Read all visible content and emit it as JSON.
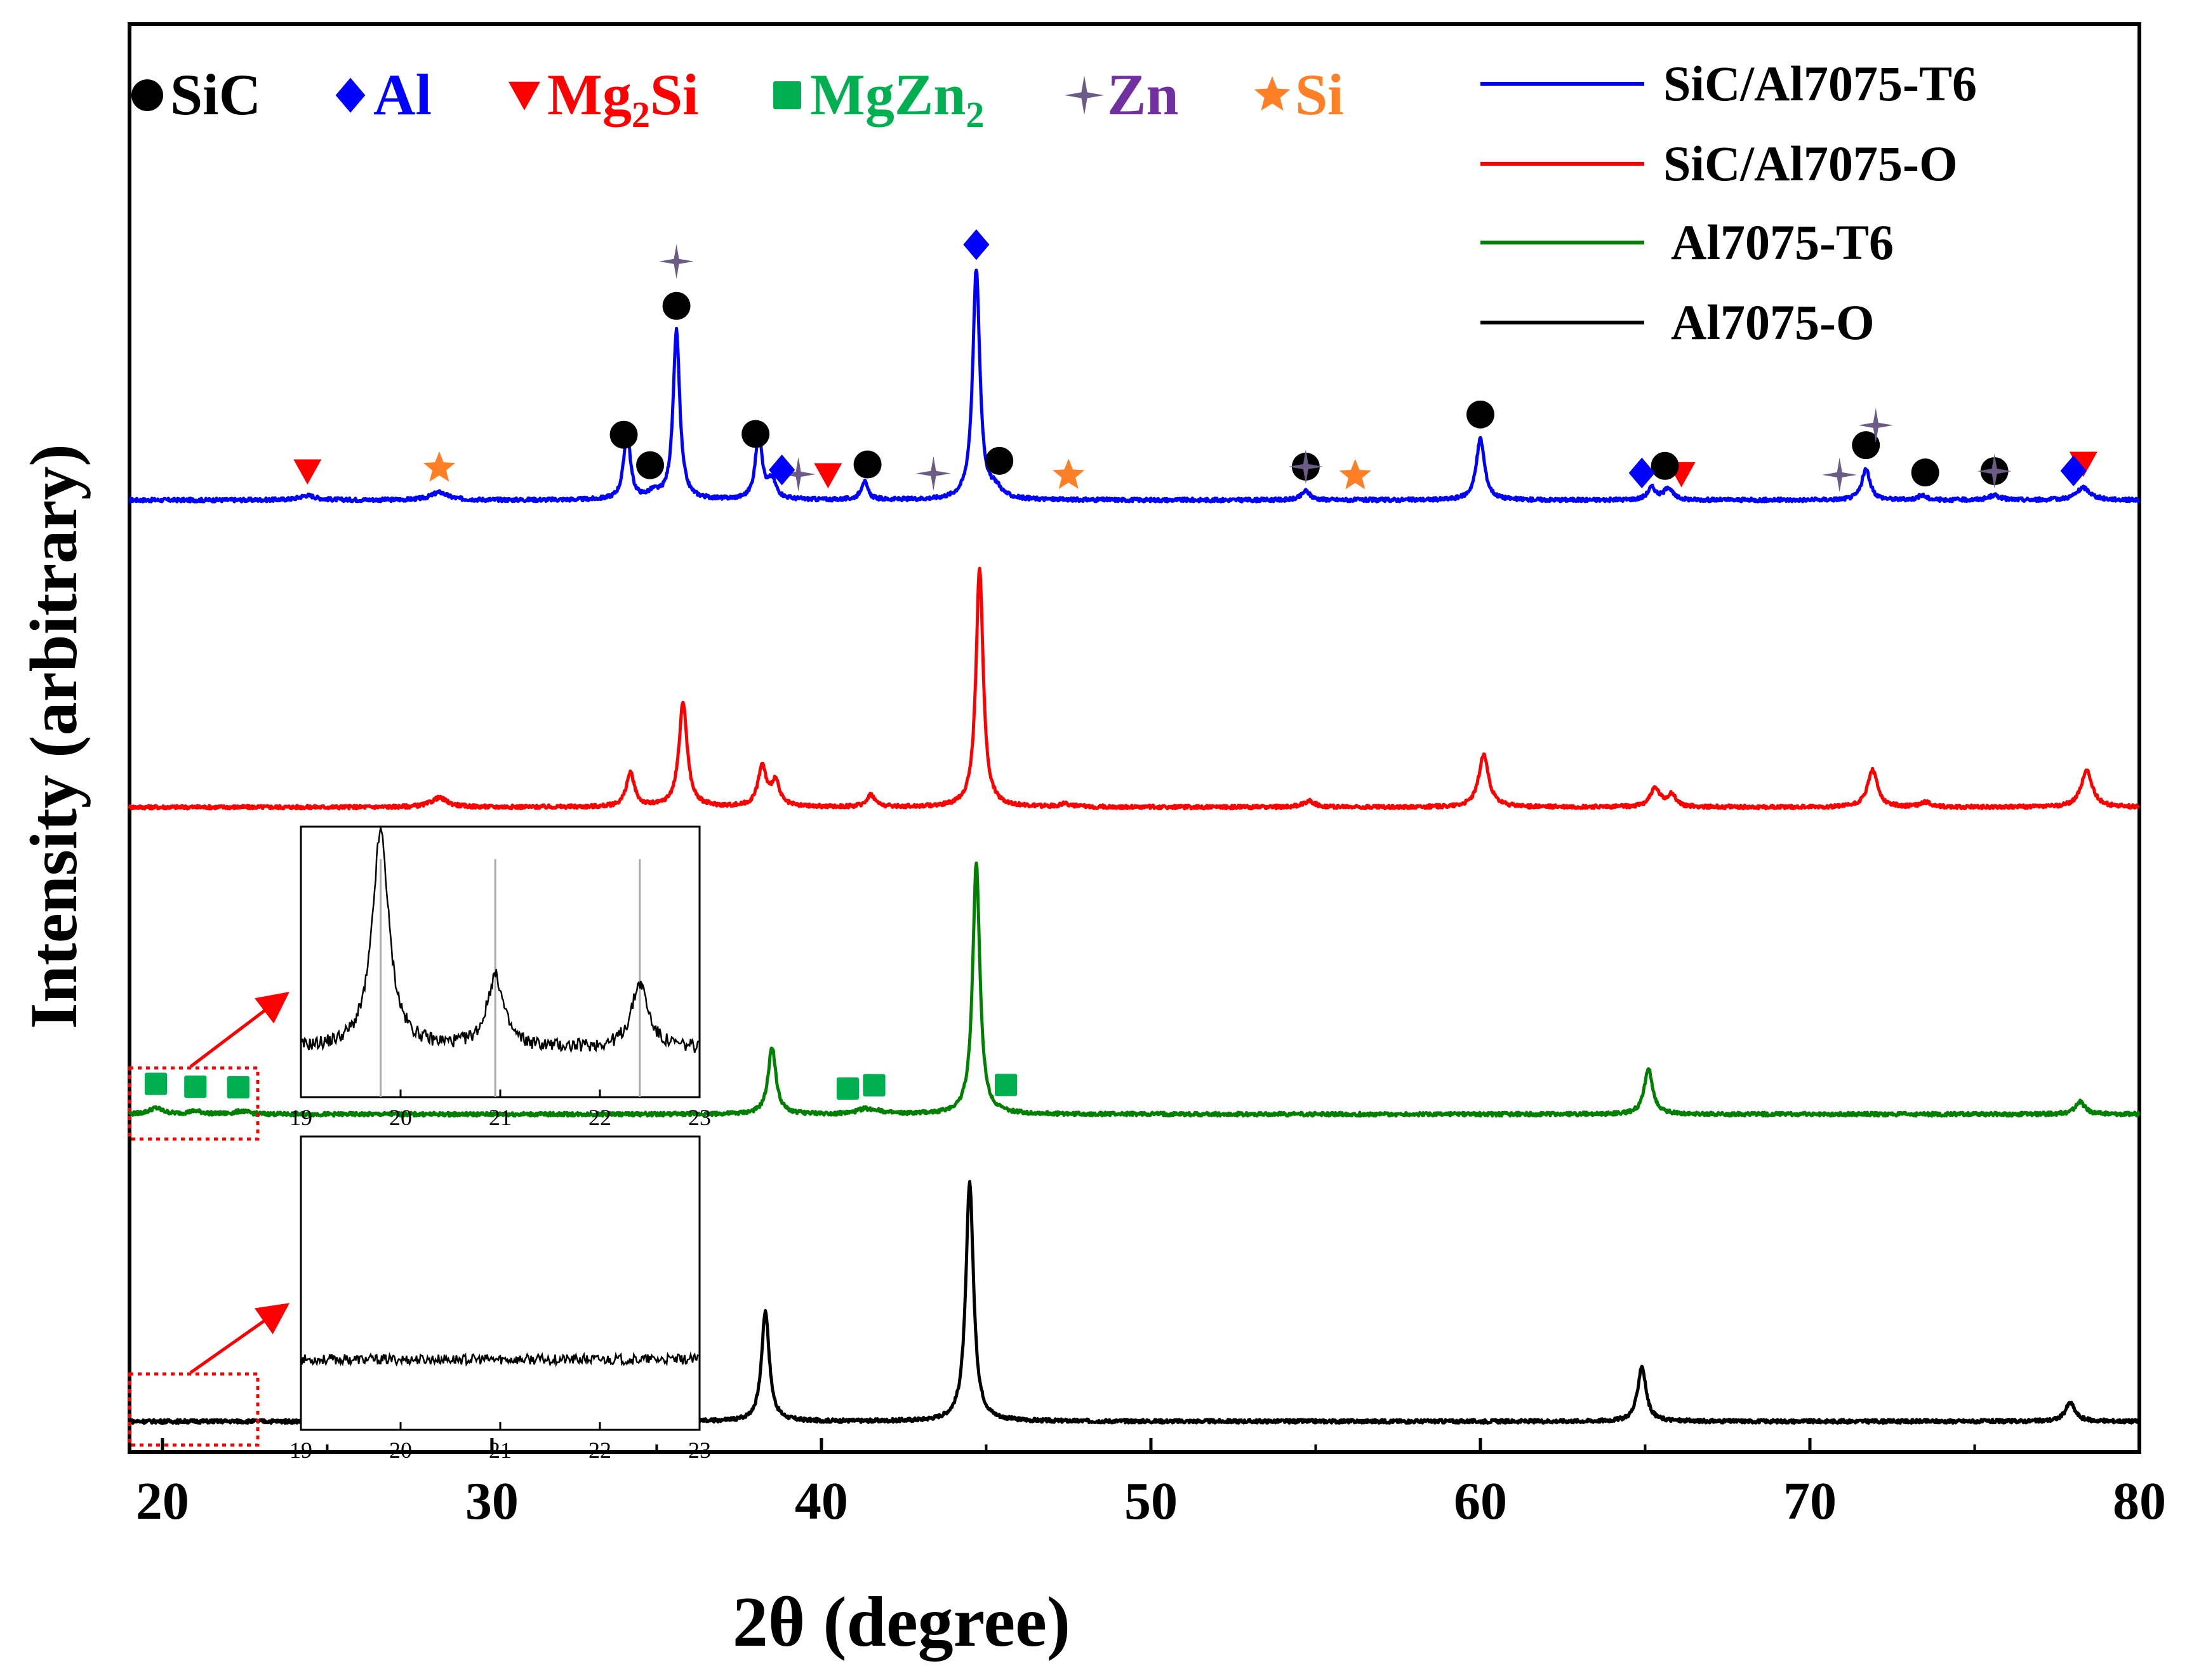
{
  "chart_data": {
    "type": "line",
    "title": "",
    "xlabel": "2θ (degree)",
    "ylabel": "Intensity (arbitrary)",
    "xlim": [
      19,
      80
    ],
    "ylim": [
      -0.5,
      46
    ],
    "x_ticks": [
      20,
      30,
      40,
      50,
      60,
      70,
      80
    ],
    "y_ticks_shown": false,
    "grid": false,
    "legend_position": "top-right",
    "series": [
      {
        "name": "SiC/Al7075-T6",
        "color": "#0000ff",
        "baseline": 30.5,
        "peaks": [
          [
            24.4,
            0.15,
            0.3
          ],
          [
            28.4,
            0.25,
            0.3
          ],
          [
            34.1,
            2.2,
            0.12
          ],
          [
            34.9,
            0.2,
            0.2
          ],
          [
            35.6,
            5.5,
            0.12
          ],
          [
            38.1,
            2.2,
            0.12
          ],
          [
            38.5,
            0.6,
            0.15
          ],
          [
            41.3,
            0.6,
            0.12
          ],
          [
            44.7,
            7.5,
            0.13
          ],
          [
            45.3,
            0.3,
            0.2
          ],
          [
            54.7,
            0.3,
            0.15
          ],
          [
            60.0,
            2.0,
            0.15
          ],
          [
            65.2,
            0.4,
            0.15
          ],
          [
            65.7,
            0.4,
            0.15
          ],
          [
            71.7,
            1.0,
            0.15
          ],
          [
            73.4,
            0.15,
            0.15
          ],
          [
            75.6,
            0.15,
            0.2
          ],
          [
            78.3,
            0.4,
            0.25
          ]
        ]
      },
      {
        "name": "SiC/Al7075-O",
        "color": "#ff0000",
        "baseline": 20.5,
        "peaks": [
          [
            28.4,
            0.3,
            0.3
          ],
          [
            34.2,
            1.1,
            0.15
          ],
          [
            35.8,
            3.4,
            0.15
          ],
          [
            38.2,
            1.3,
            0.15
          ],
          [
            38.6,
            0.8,
            0.15
          ],
          [
            41.5,
            0.4,
            0.15
          ],
          [
            44.8,
            7.8,
            0.13
          ],
          [
            47.4,
            0.1,
            0.2
          ],
          [
            54.8,
            0.2,
            0.2
          ],
          [
            60.1,
            1.7,
            0.18
          ],
          [
            65.3,
            0.6,
            0.18
          ],
          [
            65.8,
            0.4,
            0.15
          ],
          [
            71.9,
            1.2,
            0.18
          ],
          [
            73.5,
            0.15,
            0.2
          ],
          [
            78.4,
            1.2,
            0.2
          ]
        ]
      },
      {
        "name": "Al7075-T6",
        "color": "#008000",
        "baseline": 10.5,
        "peaks": [
          [
            19.8,
            0.2,
            0.25
          ],
          [
            21.0,
            0.1,
            0.25
          ],
          [
            22.4,
            0.1,
            0.25
          ],
          [
            38.5,
            2.2,
            0.14
          ],
          [
            41.3,
            0.15,
            0.25
          ],
          [
            41.7,
            0.1,
            0.2
          ],
          [
            44.7,
            8.2,
            0.13
          ],
          [
            65.1,
            1.5,
            0.15
          ],
          [
            78.2,
            0.4,
            0.18
          ]
        ]
      },
      {
        "name": "Al7075-O",
        "color": "#000000",
        "baseline": 0.5,
        "peaks": [
          [
            38.3,
            3.6,
            0.14
          ],
          [
            44.5,
            7.8,
            0.14
          ],
          [
            64.9,
            1.8,
            0.15
          ],
          [
            77.9,
            0.6,
            0.18
          ]
        ]
      }
    ],
    "phase_legend": [
      {
        "symbol": "circle",
        "label": "SiC",
        "color": "#000000"
      },
      {
        "symbol": "diamond",
        "label": "Al",
        "color": "#0000ff"
      },
      {
        "symbol": "triangle-down",
        "label": "Mg",
        "sub": "2",
        "tail": "Si",
        "color": "#ff0000"
      },
      {
        "symbol": "square",
        "label": "MgZn",
        "sub": "2",
        "tail": "",
        "color": "#00b050"
      },
      {
        "symbol": "star4",
        "label": "Zn",
        "color": "#7030a0",
        "marker_color": "#6b5b86"
      },
      {
        "symbol": "star5",
        "label": "Si",
        "color": "#ff7f27"
      }
    ],
    "markers_T6": [
      {
        "phase": "Mg2Si",
        "x": [
          24.4,
          40.2,
          66.1,
          78.3
        ]
      },
      {
        "phase": "Si",
        "x": [
          28.4,
          47.5,
          56.2
        ]
      },
      {
        "phase": "SiC",
        "x": [
          34.0,
          34.8,
          35.6,
          38.0,
          41.4,
          45.4,
          54.7,
          60.0,
          65.6,
          71.7,
          73.5,
          75.6
        ]
      },
      {
        "phase": "Zn",
        "x": [
          35.6,
          39.3,
          43.4,
          54.7,
          70.9,
          72.0,
          75.6
        ]
      },
      {
        "phase": "Al",
        "x": [
          38.8,
          44.7,
          64.9,
          78.0
        ]
      }
    ],
    "markers_Al7075_T6": {
      "phase": "MgZn2",
      "x": [
        19.8,
        21.0,
        22.3,
        40.8,
        41.6,
        45.6
      ]
    },
    "inset": {
      "xlim": [
        19,
        23
      ],
      "x_ticks": [
        19,
        20,
        21,
        22,
        23
      ],
      "reference_lines": [
        19.8,
        20.95,
        22.4
      ],
      "upper": {
        "series": "Al7075-T6",
        "peaks": [
          [
            19.8,
            1.0,
            0.1
          ],
          [
            20.95,
            0.33,
            0.1
          ],
          [
            22.4,
            0.3,
            0.1
          ]
        ]
      },
      "lower": {
        "series": "Al7075-O",
        "peaks": []
      }
    }
  }
}
